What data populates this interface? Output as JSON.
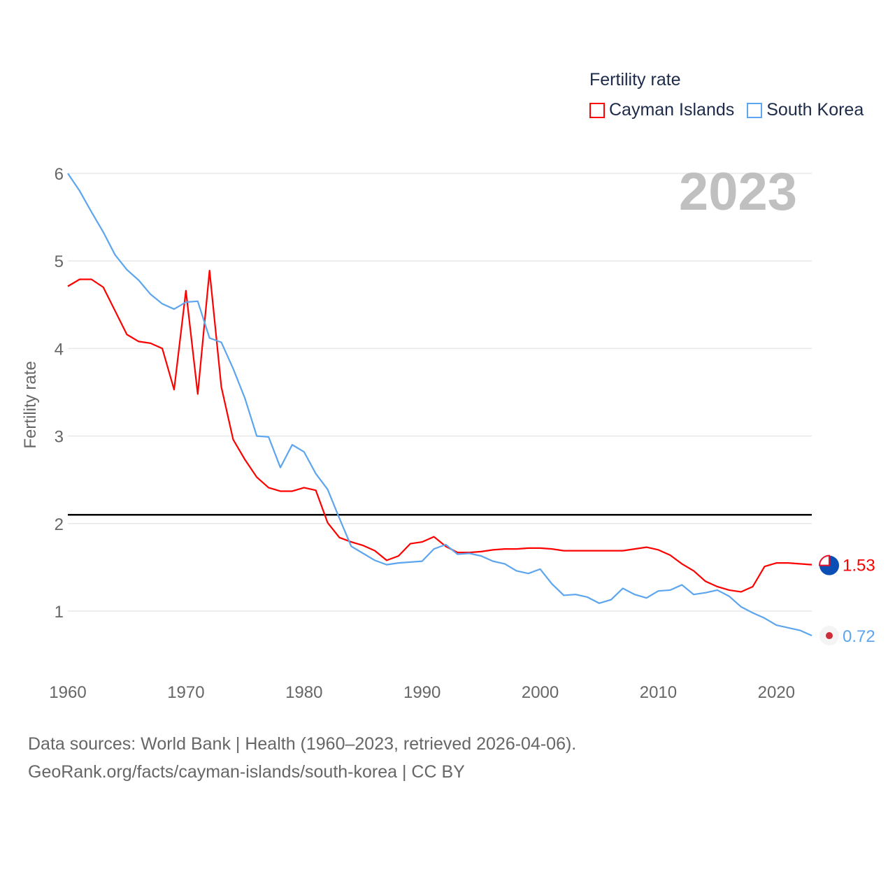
{
  "chart_data": {
    "type": "line",
    "title": "Fertility rate",
    "year_label": "2023",
    "xlabel": "",
    "ylabel": "Fertility rate",
    "xlim": [
      1960,
      2023
    ],
    "ylim": [
      0.5,
      6
    ],
    "x_ticks": [
      1960,
      1970,
      1980,
      1990,
      2000,
      2010,
      2020
    ],
    "y_ticks": [
      1,
      2,
      3,
      4,
      5,
      6
    ],
    "grid": true,
    "legend_placement": "top-right",
    "reference_line": 2.1,
    "series": [
      {
        "name": "Cayman Islands",
        "color": "#ff0000",
        "end_label": "1.53",
        "values": [
          4.71,
          4.79,
          4.79,
          4.7,
          4.43,
          4.16,
          4.08,
          4.06,
          4.0,
          3.53,
          4.66,
          3.48,
          4.89,
          3.56,
          2.96,
          2.73,
          2.53,
          2.41,
          2.37,
          2.37,
          2.41,
          2.38,
          2.01,
          1.84,
          1.79,
          1.75,
          1.69,
          1.58,
          1.63,
          1.77,
          1.79,
          1.85,
          1.74,
          1.67,
          1.67,
          1.68,
          1.7,
          1.71,
          1.71,
          1.72,
          1.72,
          1.71,
          1.69,
          1.69,
          1.69,
          1.69,
          1.69,
          1.69,
          1.71,
          1.73,
          1.7,
          1.64,
          1.54,
          1.46,
          1.34,
          1.28,
          1.24,
          1.22,
          1.28,
          1.51,
          1.55,
          1.55,
          1.54,
          1.53
        ]
      },
      {
        "name": "South Korea",
        "color": "#5da5ee",
        "end_label": "0.72",
        "values": [
          6.0,
          5.8,
          5.56,
          5.33,
          5.07,
          4.9,
          4.78,
          4.62,
          4.51,
          4.45,
          4.53,
          4.54,
          4.12,
          4.07,
          3.77,
          3.43,
          3.0,
          2.99,
          2.64,
          2.9,
          2.82,
          2.57,
          2.39,
          2.06,
          1.74,
          1.66,
          1.58,
          1.53,
          1.55,
          1.56,
          1.57,
          1.71,
          1.76,
          1.65,
          1.66,
          1.63,
          1.57,
          1.54,
          1.46,
          1.43,
          1.48,
          1.31,
          1.18,
          1.19,
          1.16,
          1.09,
          1.13,
          1.26,
          1.19,
          1.15,
          1.23,
          1.24,
          1.3,
          1.19,
          1.21,
          1.24,
          1.17,
          1.05,
          0.98,
          0.92,
          0.84,
          0.81,
          0.78,
          0.72
        ]
      }
    ]
  },
  "footer": {
    "line1": "Data sources: World Bank | Health (1960–2023, retrieved 2026-04-06).",
    "line2": "GeoRank.org/facts/cayman-islands/south-korea | CC BY"
  }
}
